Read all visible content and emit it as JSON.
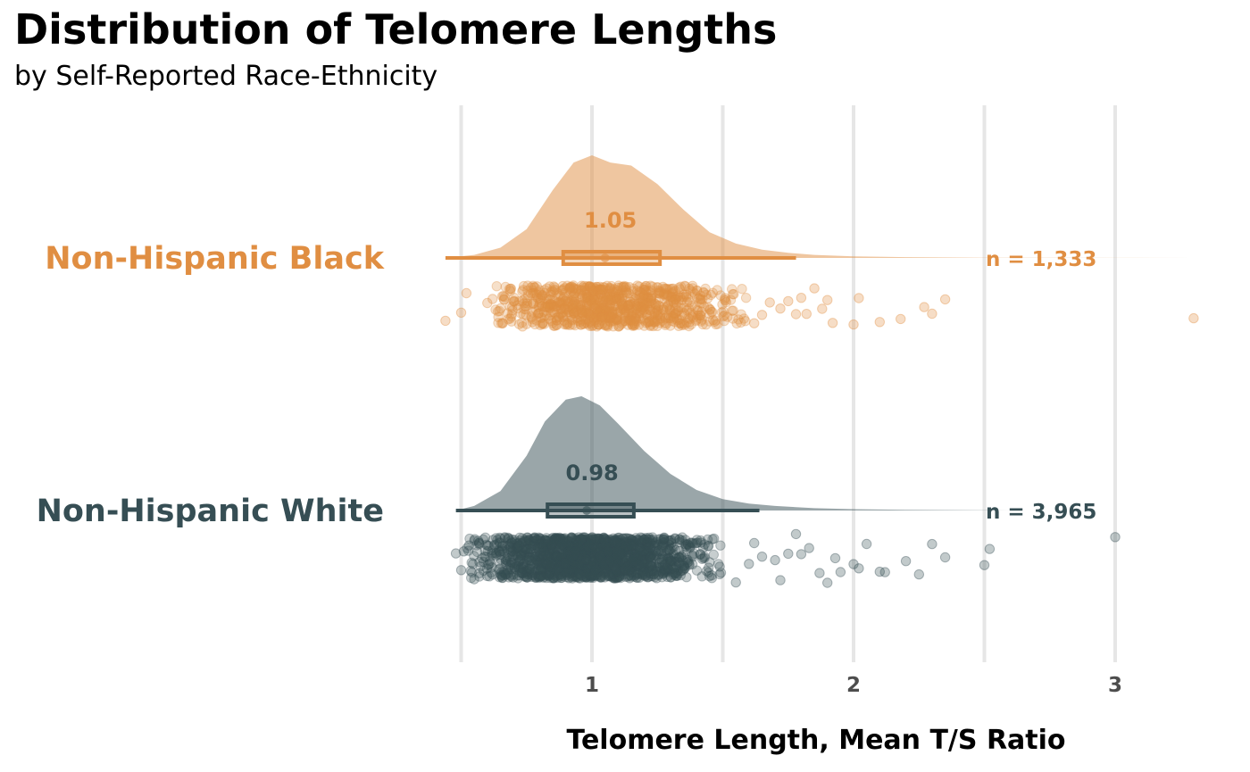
{
  "chart_data": {
    "type": "raincloud",
    "title": "Distribution of Telomere Lengths",
    "subtitle": "by Self-Reported Race-Ethnicity",
    "xlabel": "Telomere Length, Mean T/S Ratio",
    "ylabel": "",
    "xlim": [
      0.35,
      3.38
    ],
    "x_ticks": [
      1,
      2,
      3
    ],
    "x_tick_labels": [
      "1",
      "2",
      "3"
    ],
    "minor_gridlines": [
      0.5,
      1.5,
      2.5
    ],
    "grid": "vertical",
    "legend": "none",
    "groups": [
      {
        "name": "Non-Hispanic Black",
        "color": "#E08E42",
        "n_label": "n = 1,333",
        "median_label": "1.05",
        "median": 1.05,
        "q1": 0.89,
        "q3": 1.26,
        "whisker_low": 0.44,
        "whisker_high": 1.78,
        "density_x": [
          0.44,
          0.55,
          0.65,
          0.75,
          0.85,
          0.93,
          1.0,
          1.07,
          1.15,
          1.25,
          1.35,
          1.45,
          1.55,
          1.65,
          1.75,
          1.85,
          2.0,
          2.2,
          2.5,
          3.0,
          3.3
        ],
        "density_y": [
          0.0,
          0.03,
          0.1,
          0.28,
          0.66,
          0.93,
          1.0,
          0.93,
          0.9,
          0.72,
          0.47,
          0.25,
          0.14,
          0.08,
          0.05,
          0.03,
          0.015,
          0.008,
          0.003,
          0.001,
          0.0
        ],
        "outlier_points": [
          0.44,
          0.5,
          0.52,
          0.6,
          0.62,
          1.62,
          1.65,
          1.68,
          1.72,
          1.75,
          1.78,
          1.8,
          1.82,
          1.85,
          1.88,
          1.9,
          1.92,
          2.0,
          2.02,
          2.1,
          2.18,
          2.27,
          2.3,
          2.35,
          3.3
        ],
        "jitter_range": [
          0.62,
          1.6
        ],
        "jitter_count": 900
      },
      {
        "name": "Non-Hispanic White",
        "color": "#364E54",
        "n_label": "n = 3,965",
        "median_label": "0.98",
        "median": 0.98,
        "q1": 0.83,
        "q3": 1.16,
        "whisker_low": 0.48,
        "whisker_high": 1.64,
        "density_x": [
          0.48,
          0.55,
          0.65,
          0.75,
          0.82,
          0.9,
          0.96,
          1.03,
          1.1,
          1.2,
          1.3,
          1.4,
          1.5,
          1.6,
          1.7,
          1.85,
          2.0,
          2.2,
          2.5,
          2.6
        ],
        "density_y": [
          0.0,
          0.04,
          0.17,
          0.48,
          0.78,
          0.97,
          1.0,
          0.92,
          0.76,
          0.52,
          0.32,
          0.18,
          0.1,
          0.06,
          0.04,
          0.02,
          0.012,
          0.006,
          0.002,
          0.0
        ],
        "outlier_points": [
          0.48,
          0.5,
          0.51,
          0.53,
          0.55,
          1.55,
          1.6,
          1.62,
          1.65,
          1.7,
          1.72,
          1.75,
          1.78,
          1.8,
          1.83,
          1.87,
          1.9,
          1.93,
          1.95,
          2.0,
          2.02,
          2.05,
          2.1,
          2.12,
          2.2,
          2.25,
          2.3,
          2.35,
          2.5,
          2.52,
          3.0
        ],
        "jitter_range": [
          0.52,
          1.5
        ],
        "jitter_count": 1800
      }
    ]
  }
}
